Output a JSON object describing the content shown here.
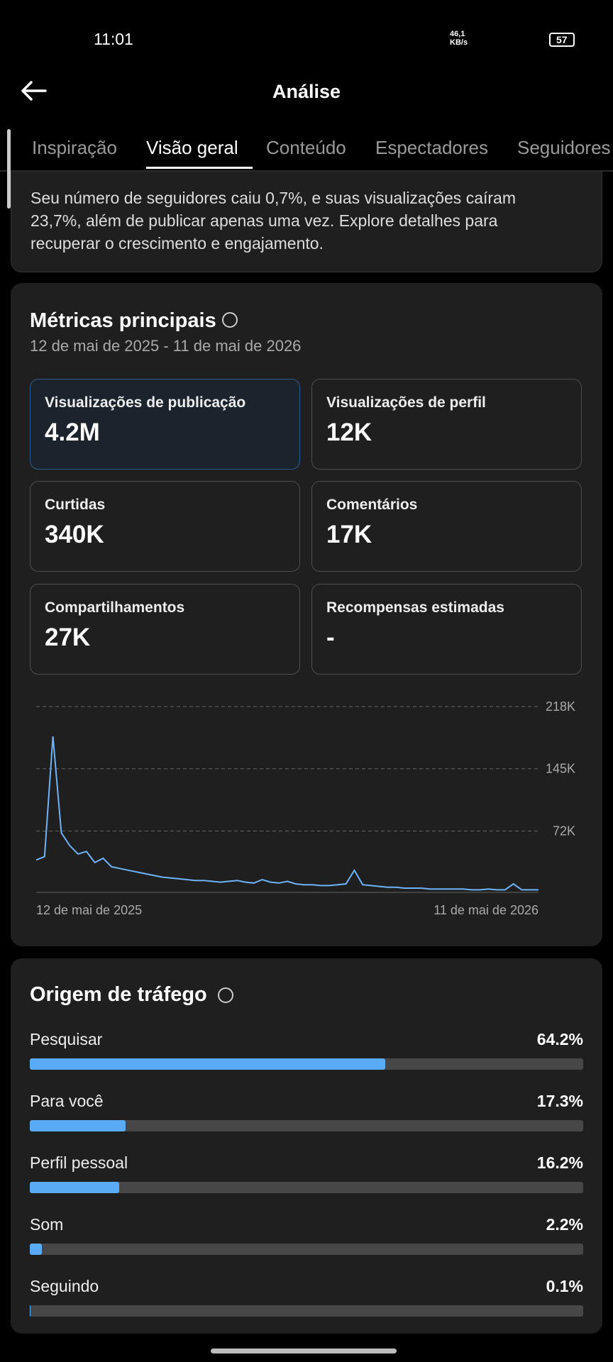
{
  "status_bar": {
    "time": "11:01",
    "speed": "46,1",
    "speed_unit": "KB/s",
    "battery": "57"
  },
  "header": {
    "title": "Análise"
  },
  "tabs": {
    "items": [
      "Inspiração",
      "Visão geral",
      "Conteúdo",
      "Espectadores",
      "Seguidores"
    ],
    "active": "Visão geral"
  },
  "banner": {
    "lines": [
      "Seu número de seguidores caiu 0,7%, e suas visualizações caíram",
      "23,7%, além de publicar apenas uma vez. Explore detalhes para",
      "recuperar o crescimento e engajamento."
    ]
  },
  "metrics": {
    "title": "Métricas principais",
    "date_range": "12 de mai de 2025 - 11 de mai de 2026",
    "tiles": [
      {
        "label": "Visualizações de publicação",
        "value": "4.2M"
      },
      {
        "label": "Visualizações de perfil",
        "value": "12K"
      },
      {
        "label": "Curtidas",
        "value": "340K"
      },
      {
        "label": "Comentários",
        "value": "17K"
      },
      {
        "label": "Compartilhamentos",
        "value": "27K"
      },
      {
        "label": "Recompensas estimadas",
        "value": "-"
      }
    ]
  },
  "chart_data": {
    "type": "line",
    "categories": [
      "12 de mai de 2025",
      null,
      null,
      null,
      null,
      null,
      null,
      null,
      null,
      null,
      null,
      null,
      null,
      null,
      null,
      null,
      null,
      null,
      null,
      null,
      null,
      null,
      null,
      null,
      null,
      null,
      null,
      null,
      null,
      null,
      null,
      null,
      null,
      null,
      null,
      null,
      null,
      null,
      null,
      null,
      null,
      null,
      null,
      null,
      null,
      null,
      null,
      null,
      null,
      null,
      null,
      null,
      null,
      null,
      null,
      null,
      null,
      null,
      null,
      null,
      "11 de mai de 2026"
    ],
    "series": [
      {
        "color": "#6fb3f7",
        "values": [
          38000,
          42000,
          183000,
          70000,
          55000,
          45000,
          48000,
          35000,
          40000,
          30000,
          28000,
          26000,
          24000,
          22000,
          20000,
          18000,
          17000,
          16000,
          15000,
          14000,
          14000,
          13000,
          12000,
          13000,
          14000,
          12000,
          11000,
          15000,
          12000,
          11000,
          13000,
          10000,
          9000,
          9000,
          8000,
          8000,
          9000,
          10000,
          26000,
          9000,
          8000,
          7000,
          6000,
          6000,
          5000,
          5000,
          5000,
          4000,
          4000,
          4000,
          4000,
          4000,
          3000,
          3000,
          4000,
          3000,
          3000,
          10000,
          3000,
          3000,
          3000
        ]
      }
    ],
    "ylim": [
      0,
      218000
    ],
    "yticks": [
      {
        "value": 72000,
        "label": "72K"
      },
      {
        "value": 145000,
        "label": "145K"
      },
      {
        "value": 218000,
        "label": "218K"
      }
    ],
    "grid": true
  },
  "traffic": {
    "title": "Origem de tráfego",
    "sources": [
      {
        "name": "Pesquisar",
        "value": 64.2,
        "value_label": "64.2%"
      },
      {
        "name": "Para você",
        "value": 17.3,
        "value_label": "17.3%"
      },
      {
        "name": "Perfil pessoal",
        "value": 16.2,
        "value_label": "16.2%"
      },
      {
        "name": "Som",
        "value": 2.2,
        "value_label": "2.2%"
      },
      {
        "name": "Seguindo",
        "value": 0.1,
        "value_label": "0.1%"
      }
    ]
  }
}
